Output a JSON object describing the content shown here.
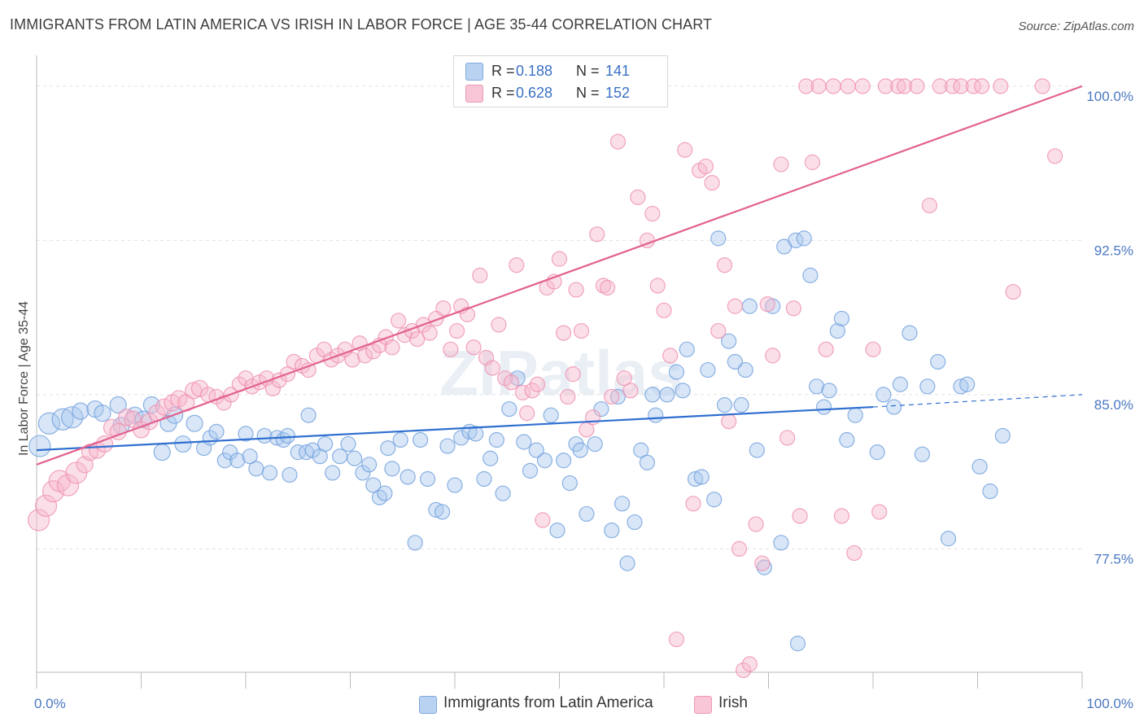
{
  "header": {
    "title": "IMMIGRANTS FROM LATIN AMERICA VS IRISH IN LABOR FORCE | AGE 35-44 CORRELATION CHART",
    "source": "Source: ZipAtlas.com"
  },
  "legend": {
    "rows": [
      {
        "r_label": "R =",
        "r_value": "0.188",
        "n_label": "N =",
        "n_value": "141"
      },
      {
        "r_label": "R =",
        "r_value": "0.628",
        "n_label": "N =",
        "n_value": "152"
      }
    ]
  },
  "bottom_legend": [
    "Immigrants from Latin America",
    "Irish"
  ],
  "colors": {
    "blue_fill": "#a9c7ee",
    "blue_stroke": "#6f9fdc",
    "blue_line": "#2f6fd0",
    "pink_fill": "#f6b8cc",
    "pink_stroke": "#ee8fae",
    "pink_line": "#e2618f",
    "tick_text": "#4a78c2",
    "grid": "#e3e3e3"
  },
  "chart_data": {
    "type": "scatter",
    "title": "IMMIGRANTS FROM LATIN AMERICA VS IRISH IN LABOR FORCE | AGE 35-44 CORRELATION CHART",
    "xlabel": "",
    "ylabel": "In Labor Force | Age 35-44",
    "xlim": [
      0,
      100
    ],
    "ylim": [
      71.5,
      101.5
    ],
    "x_tick_labels": [
      "0.0%",
      "100.0%"
    ],
    "y_ticks": [
      77.5,
      85.0,
      92.5,
      100.0
    ],
    "y_tick_labels": [
      "77.5%",
      "85.0%",
      "92.5%",
      "100.0%"
    ],
    "grid": "horizontal dashed",
    "watermark": "ZIPatlas",
    "series": [
      {
        "name": "Immigrants from Latin America",
        "color": "#a9c7ee",
        "trend": {
          "x0": 0,
          "y0": 82.3,
          "x1": 80,
          "y1": 84.4,
          "dash_to_x": 100,
          "dash_to_y": 85.0
        },
        "points": [
          [
            0.3,
            82.5
          ],
          [
            1.2,
            83.6
          ],
          [
            2.5,
            83.8
          ],
          [
            3.4,
            83.9
          ],
          [
            4.2,
            84.2
          ],
          [
            5.6,
            84.3
          ],
          [
            6.3,
            84.1
          ],
          [
            7.8,
            84.5
          ],
          [
            8.1,
            83.5
          ],
          [
            9.4,
            84.0
          ],
          [
            10.2,
            83.8
          ],
          [
            11.0,
            84.5
          ],
          [
            12.0,
            82.2
          ],
          [
            12.6,
            83.6
          ],
          [
            13.2,
            84.0
          ],
          [
            14.0,
            82.6
          ],
          [
            15.1,
            83.6
          ],
          [
            16.0,
            82.4
          ],
          [
            16.6,
            82.9
          ],
          [
            17.2,
            83.2
          ],
          [
            18.0,
            81.8
          ],
          [
            18.5,
            82.2
          ],
          [
            19.2,
            81.8
          ],
          [
            20.0,
            83.1
          ],
          [
            20.4,
            82.0
          ],
          [
            21.0,
            81.4
          ],
          [
            21.8,
            83.0
          ],
          [
            22.3,
            81.2
          ],
          [
            23.0,
            82.9
          ],
          [
            23.6,
            82.8
          ],
          [
            24.2,
            81.1
          ],
          [
            25.0,
            82.2
          ],
          [
            25.8,
            82.2
          ],
          [
            26.4,
            82.3
          ],
          [
            27.1,
            82.0
          ],
          [
            27.6,
            82.6
          ],
          [
            28.3,
            81.2
          ],
          [
            29.0,
            82.0
          ],
          [
            29.8,
            82.6
          ],
          [
            30.4,
            81.9
          ],
          [
            31.2,
            81.2
          ],
          [
            31.8,
            81.6
          ],
          [
            32.2,
            80.6
          ],
          [
            32.8,
            80.0
          ],
          [
            33.3,
            80.2
          ],
          [
            34.0,
            81.4
          ],
          [
            34.8,
            82.8
          ],
          [
            35.5,
            81.0
          ],
          [
            36.2,
            77.8
          ],
          [
            36.7,
            82.8
          ],
          [
            37.4,
            80.9
          ],
          [
            38.2,
            79.4
          ],
          [
            38.8,
            79.3
          ],
          [
            39.3,
            82.5
          ],
          [
            40.0,
            80.6
          ],
          [
            40.6,
            82.9
          ],
          [
            41.4,
            83.2
          ],
          [
            42.0,
            83.1
          ],
          [
            42.8,
            80.9
          ],
          [
            43.4,
            81.9
          ],
          [
            44.0,
            82.8
          ],
          [
            44.6,
            80.2
          ],
          [
            45.2,
            84.3
          ],
          [
            46.0,
            85.8
          ],
          [
            46.6,
            82.7
          ],
          [
            47.2,
            81.3
          ],
          [
            47.8,
            82.3
          ],
          [
            48.6,
            81.8
          ],
          [
            49.2,
            84.0
          ],
          [
            49.8,
            78.4
          ],
          [
            50.4,
            81.8
          ],
          [
            51.0,
            80.7
          ],
          [
            51.6,
            82.6
          ],
          [
            52.0,
            82.3
          ],
          [
            52.6,
            79.2
          ],
          [
            53.4,
            82.6
          ],
          [
            54.0,
            84.3
          ],
          [
            55.0,
            78.4
          ],
          [
            55.6,
            84.9
          ],
          [
            56.0,
            79.7
          ],
          [
            56.5,
            76.8
          ],
          [
            57.2,
            78.8
          ],
          [
            57.8,
            82.3
          ],
          [
            58.4,
            81.7
          ],
          [
            58.9,
            85.0
          ],
          [
            59.2,
            84.0
          ],
          [
            60.3,
            85.0
          ],
          [
            61.2,
            86.1
          ],
          [
            61.8,
            85.2
          ],
          [
            62.2,
            87.2
          ],
          [
            63.0,
            80.9
          ],
          [
            63.6,
            81.0
          ],
          [
            64.2,
            86.2
          ],
          [
            64.8,
            79.9
          ],
          [
            65.2,
            92.6
          ],
          [
            65.8,
            84.5
          ],
          [
            66.2,
            87.6
          ],
          [
            66.8,
            86.6
          ],
          [
            67.4,
            84.5
          ],
          [
            67.8,
            86.2
          ],
          [
            68.2,
            89.3
          ],
          [
            68.9,
            82.3
          ],
          [
            69.6,
            76.6
          ],
          [
            70.4,
            89.3
          ],
          [
            71.2,
            77.8
          ],
          [
            71.5,
            92.2
          ],
          [
            72.6,
            92.5
          ],
          [
            72.8,
            72.9
          ],
          [
            73.4,
            92.6
          ],
          [
            74.0,
            90.8
          ],
          [
            74.6,
            85.4
          ],
          [
            75.3,
            84.4
          ],
          [
            75.8,
            85.2
          ],
          [
            76.6,
            88.1
          ],
          [
            77.0,
            88.7
          ],
          [
            77.5,
            82.8
          ],
          [
            78.3,
            84.0
          ],
          [
            80.4,
            82.2
          ],
          [
            81.0,
            85.0
          ],
          [
            82.0,
            84.4
          ],
          [
            82.6,
            85.5
          ],
          [
            83.5,
            88.0
          ],
          [
            84.7,
            82.1
          ],
          [
            85.2,
            85.4
          ],
          [
            86.2,
            86.6
          ],
          [
            87.2,
            78.0
          ],
          [
            88.4,
            85.4
          ],
          [
            89.0,
            85.5
          ],
          [
            90.2,
            81.5
          ],
          [
            91.2,
            80.3
          ],
          [
            92.4,
            83.0
          ],
          [
            24.0,
            83.0
          ],
          [
            26.0,
            84.0
          ],
          [
            33.6,
            82.4
          ]
        ]
      },
      {
        "name": "Irish",
        "color": "#f6b8cc",
        "trend": {
          "x0": 0,
          "y0": 81.6,
          "x1": 100,
          "y1": 100.0
        },
        "points": [
          [
            0.2,
            78.9
          ],
          [
            0.9,
            79.6
          ],
          [
            1.6,
            80.3
          ],
          [
            2.2,
            80.8
          ],
          [
            3.0,
            80.6
          ],
          [
            3.8,
            81.2
          ],
          [
            4.6,
            81.6
          ],
          [
            5.1,
            82.2
          ],
          [
            5.8,
            82.3
          ],
          [
            6.5,
            82.6
          ],
          [
            7.2,
            83.4
          ],
          [
            7.8,
            83.2
          ],
          [
            8.6,
            83.9
          ],
          [
            9.2,
            83.8
          ],
          [
            10.0,
            83.3
          ],
          [
            10.8,
            83.7
          ],
          [
            11.5,
            84.1
          ],
          [
            12.2,
            84.4
          ],
          [
            13.0,
            84.6
          ],
          [
            13.6,
            84.8
          ],
          [
            14.3,
            84.6
          ],
          [
            15.0,
            85.2
          ],
          [
            15.6,
            85.3
          ],
          [
            16.4,
            85.0
          ],
          [
            17.2,
            84.9
          ],
          [
            17.9,
            84.6
          ],
          [
            18.6,
            85.0
          ],
          [
            19.4,
            85.5
          ],
          [
            20.0,
            85.8
          ],
          [
            20.6,
            85.4
          ],
          [
            21.3,
            85.6
          ],
          [
            22.0,
            85.8
          ],
          [
            22.6,
            85.3
          ],
          [
            23.2,
            85.7
          ],
          [
            24.0,
            86.0
          ],
          [
            24.6,
            86.6
          ],
          [
            25.4,
            86.4
          ],
          [
            26.0,
            86.2
          ],
          [
            26.8,
            86.9
          ],
          [
            27.5,
            87.2
          ],
          [
            28.2,
            86.7
          ],
          [
            28.8,
            86.9
          ],
          [
            29.5,
            87.2
          ],
          [
            30.2,
            86.7
          ],
          [
            30.9,
            87.5
          ],
          [
            31.4,
            86.9
          ],
          [
            32.2,
            87.1
          ],
          [
            32.8,
            87.4
          ],
          [
            33.4,
            87.8
          ],
          [
            34.0,
            87.3
          ],
          [
            34.6,
            88.6
          ],
          [
            35.2,
            87.9
          ],
          [
            35.9,
            88.1
          ],
          [
            36.4,
            87.7
          ],
          [
            37.0,
            88.4
          ],
          [
            37.6,
            88.0
          ],
          [
            38.2,
            88.7
          ],
          [
            38.9,
            89.2
          ],
          [
            39.6,
            87.2
          ],
          [
            40.2,
            88.1
          ],
          [
            40.6,
            89.3
          ],
          [
            41.2,
            88.9
          ],
          [
            41.8,
            87.3
          ],
          [
            42.4,
            90.8
          ],
          [
            43.0,
            86.8
          ],
          [
            43.6,
            86.3
          ],
          [
            44.2,
            88.4
          ],
          [
            44.8,
            85.8
          ],
          [
            45.4,
            85.6
          ],
          [
            45.9,
            91.3
          ],
          [
            46.5,
            85.1
          ],
          [
            46.9,
            84.1
          ],
          [
            47.4,
            85.2
          ],
          [
            47.9,
            85.5
          ],
          [
            48.4,
            78.9
          ],
          [
            48.8,
            90.2
          ],
          [
            49.5,
            90.5
          ],
          [
            50.0,
            91.6
          ],
          [
            50.4,
            88.0
          ],
          [
            50.8,
            84.9
          ],
          [
            51.3,
            86.0
          ],
          [
            51.6,
            90.1
          ],
          [
            52.1,
            88.1
          ],
          [
            52.6,
            83.3
          ],
          [
            53.2,
            83.9
          ],
          [
            53.6,
            92.8
          ],
          [
            54.2,
            90.3
          ],
          [
            54.6,
            90.2
          ],
          [
            55.0,
            84.9
          ],
          [
            55.6,
            97.3
          ],
          [
            56.2,
            85.8
          ],
          [
            56.8,
            85.2
          ],
          [
            57.5,
            94.6
          ],
          [
            58.4,
            92.5
          ],
          [
            58.9,
            93.8
          ],
          [
            59.4,
            90.3
          ],
          [
            60.0,
            89.1
          ],
          [
            60.6,
            86.9
          ],
          [
            61.2,
            73.1
          ],
          [
            62.0,
            96.9
          ],
          [
            62.8,
            79.7
          ],
          [
            63.4,
            95.9
          ],
          [
            64.0,
            96.1
          ],
          [
            64.6,
            95.3
          ],
          [
            65.2,
            88.1
          ],
          [
            65.8,
            91.3
          ],
          [
            66.2,
            83.7
          ],
          [
            66.8,
            89.3
          ],
          [
            67.2,
            77.5
          ],
          [
            67.6,
            71.6
          ],
          [
            68.2,
            71.9
          ],
          [
            68.8,
            78.7
          ],
          [
            69.4,
            76.8
          ],
          [
            69.9,
            89.4
          ],
          [
            70.4,
            86.9
          ],
          [
            71.2,
            96.2
          ],
          [
            71.8,
            82.9
          ],
          [
            72.4,
            89.2
          ],
          [
            73.0,
            79.1
          ],
          [
            73.6,
            100.0
          ],
          [
            74.2,
            96.3
          ],
          [
            74.8,
            100.0
          ],
          [
            75.5,
            87.2
          ],
          [
            76.2,
            100.0
          ],
          [
            77.0,
            79.1
          ],
          [
            77.6,
            100.0
          ],
          [
            78.2,
            77.3
          ],
          [
            79.0,
            100.0
          ],
          [
            80.0,
            87.2
          ],
          [
            80.6,
            79.3
          ],
          [
            81.2,
            100.0
          ],
          [
            82.4,
            100.0
          ],
          [
            83.0,
            100.0
          ],
          [
            84.2,
            100.0
          ],
          [
            85.4,
            94.2
          ],
          [
            86.4,
            100.0
          ],
          [
            87.6,
            100.0
          ],
          [
            88.4,
            100.0
          ],
          [
            89.6,
            100.0
          ],
          [
            90.4,
            100.0
          ],
          [
            92.2,
            100.0
          ],
          [
            93.4,
            90.0
          ],
          [
            96.2,
            100.0
          ],
          [
            97.4,
            96.6
          ]
        ]
      }
    ]
  }
}
